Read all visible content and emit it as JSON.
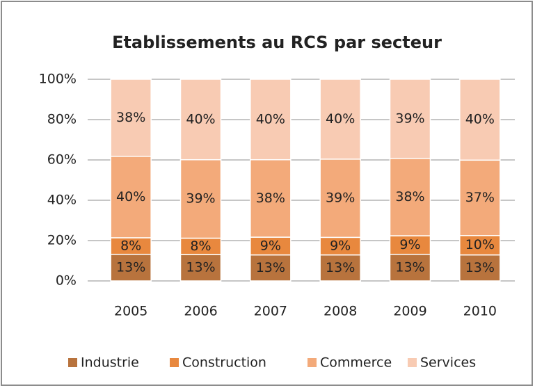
{
  "chart_data": {
    "type": "stacked_bar",
    "title": "Etablissements au RCS par secteur",
    "categories": [
      "2005",
      "2006",
      "2007",
      "2008",
      "2009",
      "2010"
    ],
    "series": [
      {
        "name": "Industrie",
        "color": "#b8733d",
        "values": [
          13.2,
          13.1,
          12.9,
          12.9,
          13.2,
          12.9
        ],
        "value_labels": [
          "13%",
          "13%",
          "13%",
          "13%",
          "13%",
          "13%"
        ]
      },
      {
        "name": "Construction",
        "color": "#e8883e",
        "values": [
          8.2,
          8.1,
          8.8,
          8.7,
          9.2,
          9.6
        ],
        "value_labels": [
          "8%",
          "8%",
          "9%",
          "9%",
          "9%",
          "10%"
        ]
      },
      {
        "name": "Commerce",
        "color": "#f3aa7a",
        "values": [
          40.4,
          38.9,
          38.4,
          38.8,
          38.4,
          37.4
        ],
        "value_labels": [
          "40%",
          "39%",
          "38%",
          "39%",
          "38%",
          "37%"
        ]
      },
      {
        "name": "Services",
        "color": "#f8cbb3",
        "values": [
          38.2,
          39.9,
          39.9,
          39.6,
          39.2,
          40.1
        ],
        "value_labels": [
          "38%",
          "40%",
          "40%",
          "40%",
          "39%",
          "40%"
        ]
      }
    ],
    "ylim": [
      0,
      100
    ],
    "yticks": [
      {
        "value": 0,
        "label": "0%"
      },
      {
        "value": 20,
        "label": "20%"
      },
      {
        "value": 40,
        "label": "40%"
      },
      {
        "value": 60,
        "label": "60%"
      },
      {
        "value": 80,
        "label": "80%"
      },
      {
        "value": 100,
        "label": "100%"
      }
    ],
    "grid": true,
    "legend": "bottom"
  }
}
